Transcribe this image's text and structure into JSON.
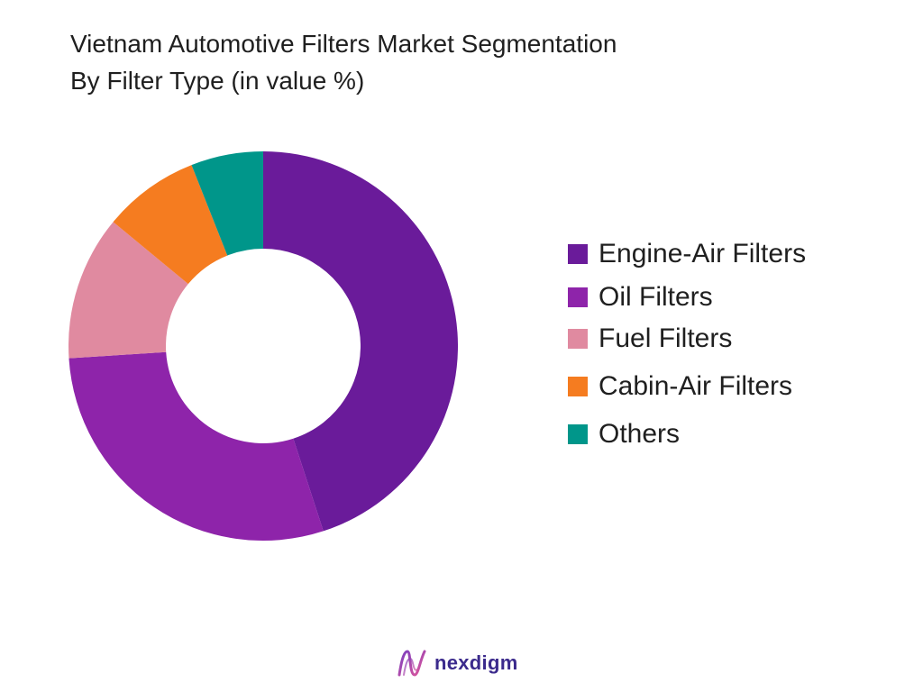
{
  "chart_data": {
    "type": "pie",
    "title_lines": [
      "Vietnam Automotive Filters Market Segmentation",
      "By Filter Type (in value %)"
    ],
    "donut": true,
    "legend_position": "right",
    "series": [
      {
        "name": "Engine-Air Filters",
        "value": 45,
        "color": "#6a1b9a"
      },
      {
        "name": "Oil Filters",
        "value": 29,
        "color": "#8e24aa"
      },
      {
        "name": "Fuel Filters",
        "value": 12,
        "color": "#e08aa0"
      },
      {
        "name": "Cabin-Air Filters",
        "value": 8,
        "color": "#f57c20"
      },
      {
        "name": "Others",
        "value": 6,
        "color": "#00968a"
      }
    ]
  },
  "brand": {
    "name": "nexdigm",
    "logo_icon": "nexdigm-wave-logo-icon",
    "logo_colors": [
      "#7b3fbf",
      "#e0569a"
    ]
  }
}
